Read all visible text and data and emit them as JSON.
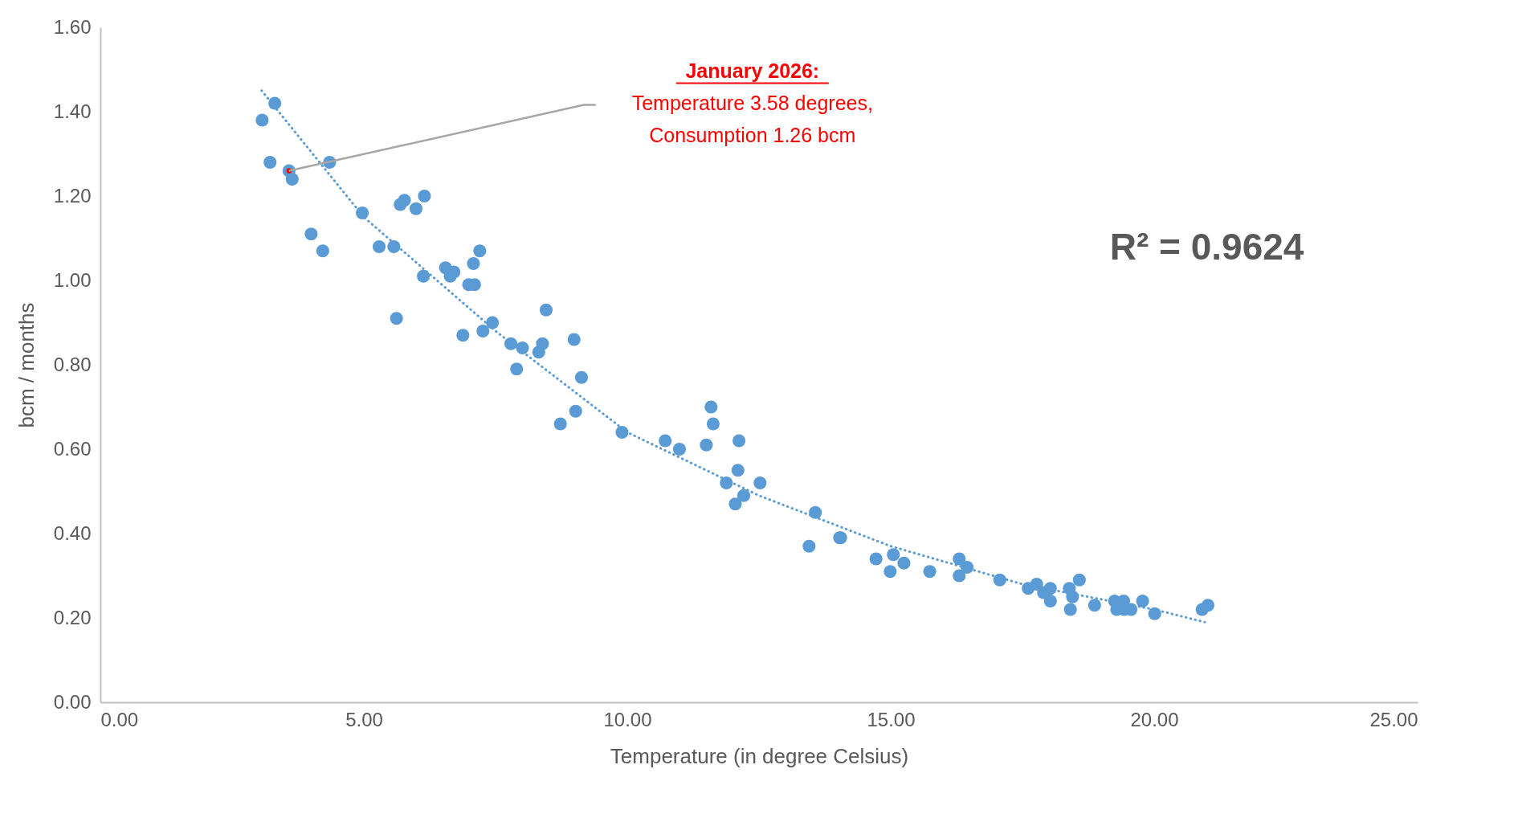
{
  "chart_data": {
    "type": "scatter",
    "xlabel": "Temperature (in degree Celsius)",
    "ylabel": "bcm / months",
    "xlim": [
      0,
      25
    ],
    "ylim": [
      0,
      1.6
    ],
    "xticks": [
      {
        "value": 0,
        "label": "0.00"
      },
      {
        "value": 5,
        "label": "5.00"
      },
      {
        "value": 10,
        "label": "10.00"
      },
      {
        "value": 15,
        "label": "15.00"
      },
      {
        "value": 20,
        "label": "20.00"
      },
      {
        "value": 25,
        "label": "25.00"
      }
    ],
    "yticks": [
      {
        "value": 0,
        "label": "0.00"
      },
      {
        "value": 0.2,
        "label": "0.20"
      },
      {
        "value": 0.4,
        "label": "0.40"
      },
      {
        "value": 0.6,
        "label": "0.60"
      },
      {
        "value": 0.8,
        "label": "0.80"
      },
      {
        "value": 1,
        "label": "1.00"
      },
      {
        "value": 1.2,
        "label": "1.20"
      },
      {
        "value": 1.4,
        "label": "1.40"
      },
      {
        "value": 1.6,
        "label": "1.60"
      }
    ],
    "grid": false,
    "marker": "circle",
    "series": [
      {
        "type": "scatter",
        "color": "#5b9bd5",
        "x": [
          3.07,
          3.31,
          3.22,
          3.58,
          3.64,
          4.35,
          4.0,
          4.22,
          4.97,
          5.29,
          5.57,
          5.62,
          5.69,
          5.77,
          5.99,
          6.15,
          6.13,
          6.55,
          6.64,
          6.71,
          6.99,
          7.1,
          7.08,
          7.2,
          6.88,
          7.26,
          7.44,
          7.79,
          8.01,
          7.9,
          8.32,
          8.39,
          8.46,
          8.99,
          9.13,
          8.73,
          9.02,
          9.9,
          10.72,
          10.99,
          11.5,
          11.59,
          11.63,
          12.12,
          11.88,
          12.1,
          12.05,
          12.21,
          12.52,
          13.57,
          13.45,
          14.03,
          14.05,
          14.72,
          15.05,
          14.99,
          15.25,
          15.74,
          16.3,
          16.45,
          16.3,
          17.07,
          17.61,
          17.77,
          17.9,
          18.03,
          18.03,
          18.39,
          18.45,
          18.41,
          18.58,
          18.87,
          19.25,
          19.29,
          19.42,
          19.43,
          19.56,
          19.78,
          20.01,
          20.91,
          21.02
        ],
        "values": [
          1.38,
          1.42,
          1.28,
          1.26,
          1.24,
          1.28,
          1.11,
          1.07,
          1.16,
          1.08,
          1.08,
          0.91,
          1.18,
          1.19,
          1.17,
          1.2,
          1.01,
          1.03,
          1.01,
          1.02,
          0.99,
          0.99,
          1.04,
          1.07,
          0.87,
          0.88,
          0.9,
          0.85,
          0.84,
          0.79,
          0.83,
          0.85,
          0.93,
          0.86,
          0.77,
          0.66,
          0.69,
          0.64,
          0.62,
          0.6,
          0.61,
          0.7,
          0.66,
          0.62,
          0.52,
          0.55,
          0.47,
          0.49,
          0.52,
          0.45,
          0.37,
          0.39,
          0.39,
          0.34,
          0.35,
          0.31,
          0.33,
          0.31,
          0.34,
          0.32,
          0.3,
          0.29,
          0.27,
          0.28,
          0.26,
          0.27,
          0.24,
          0.27,
          0.25,
          0.22,
          0.29,
          0.23,
          0.24,
          0.22,
          0.24,
          0.22,
          0.22,
          0.24,
          0.21,
          0.22,
          0.23
        ]
      },
      {
        "type": "line",
        "color": "#5b9bd5",
        "line_style": "dotted",
        "marker": "none",
        "x": [
          3.06,
          5,
          7.5,
          10,
          12.5,
          15,
          17.5,
          20,
          20.96
        ],
        "values": [
          1.45,
          1.15,
          0.88,
          0.64,
          0.49,
          0.37,
          0.28,
          0.22,
          0.19
        ]
      },
      {
        "type": "scatter",
        "color": "#ff0000",
        "x": [
          3.58
        ],
        "values": [
          1.26
        ]
      }
    ],
    "annotations": [
      "January 2026:",
      "Temperature 3.58 degrees,",
      "Consumption 1.26 bcm",
      "R² = 0.9624"
    ]
  }
}
